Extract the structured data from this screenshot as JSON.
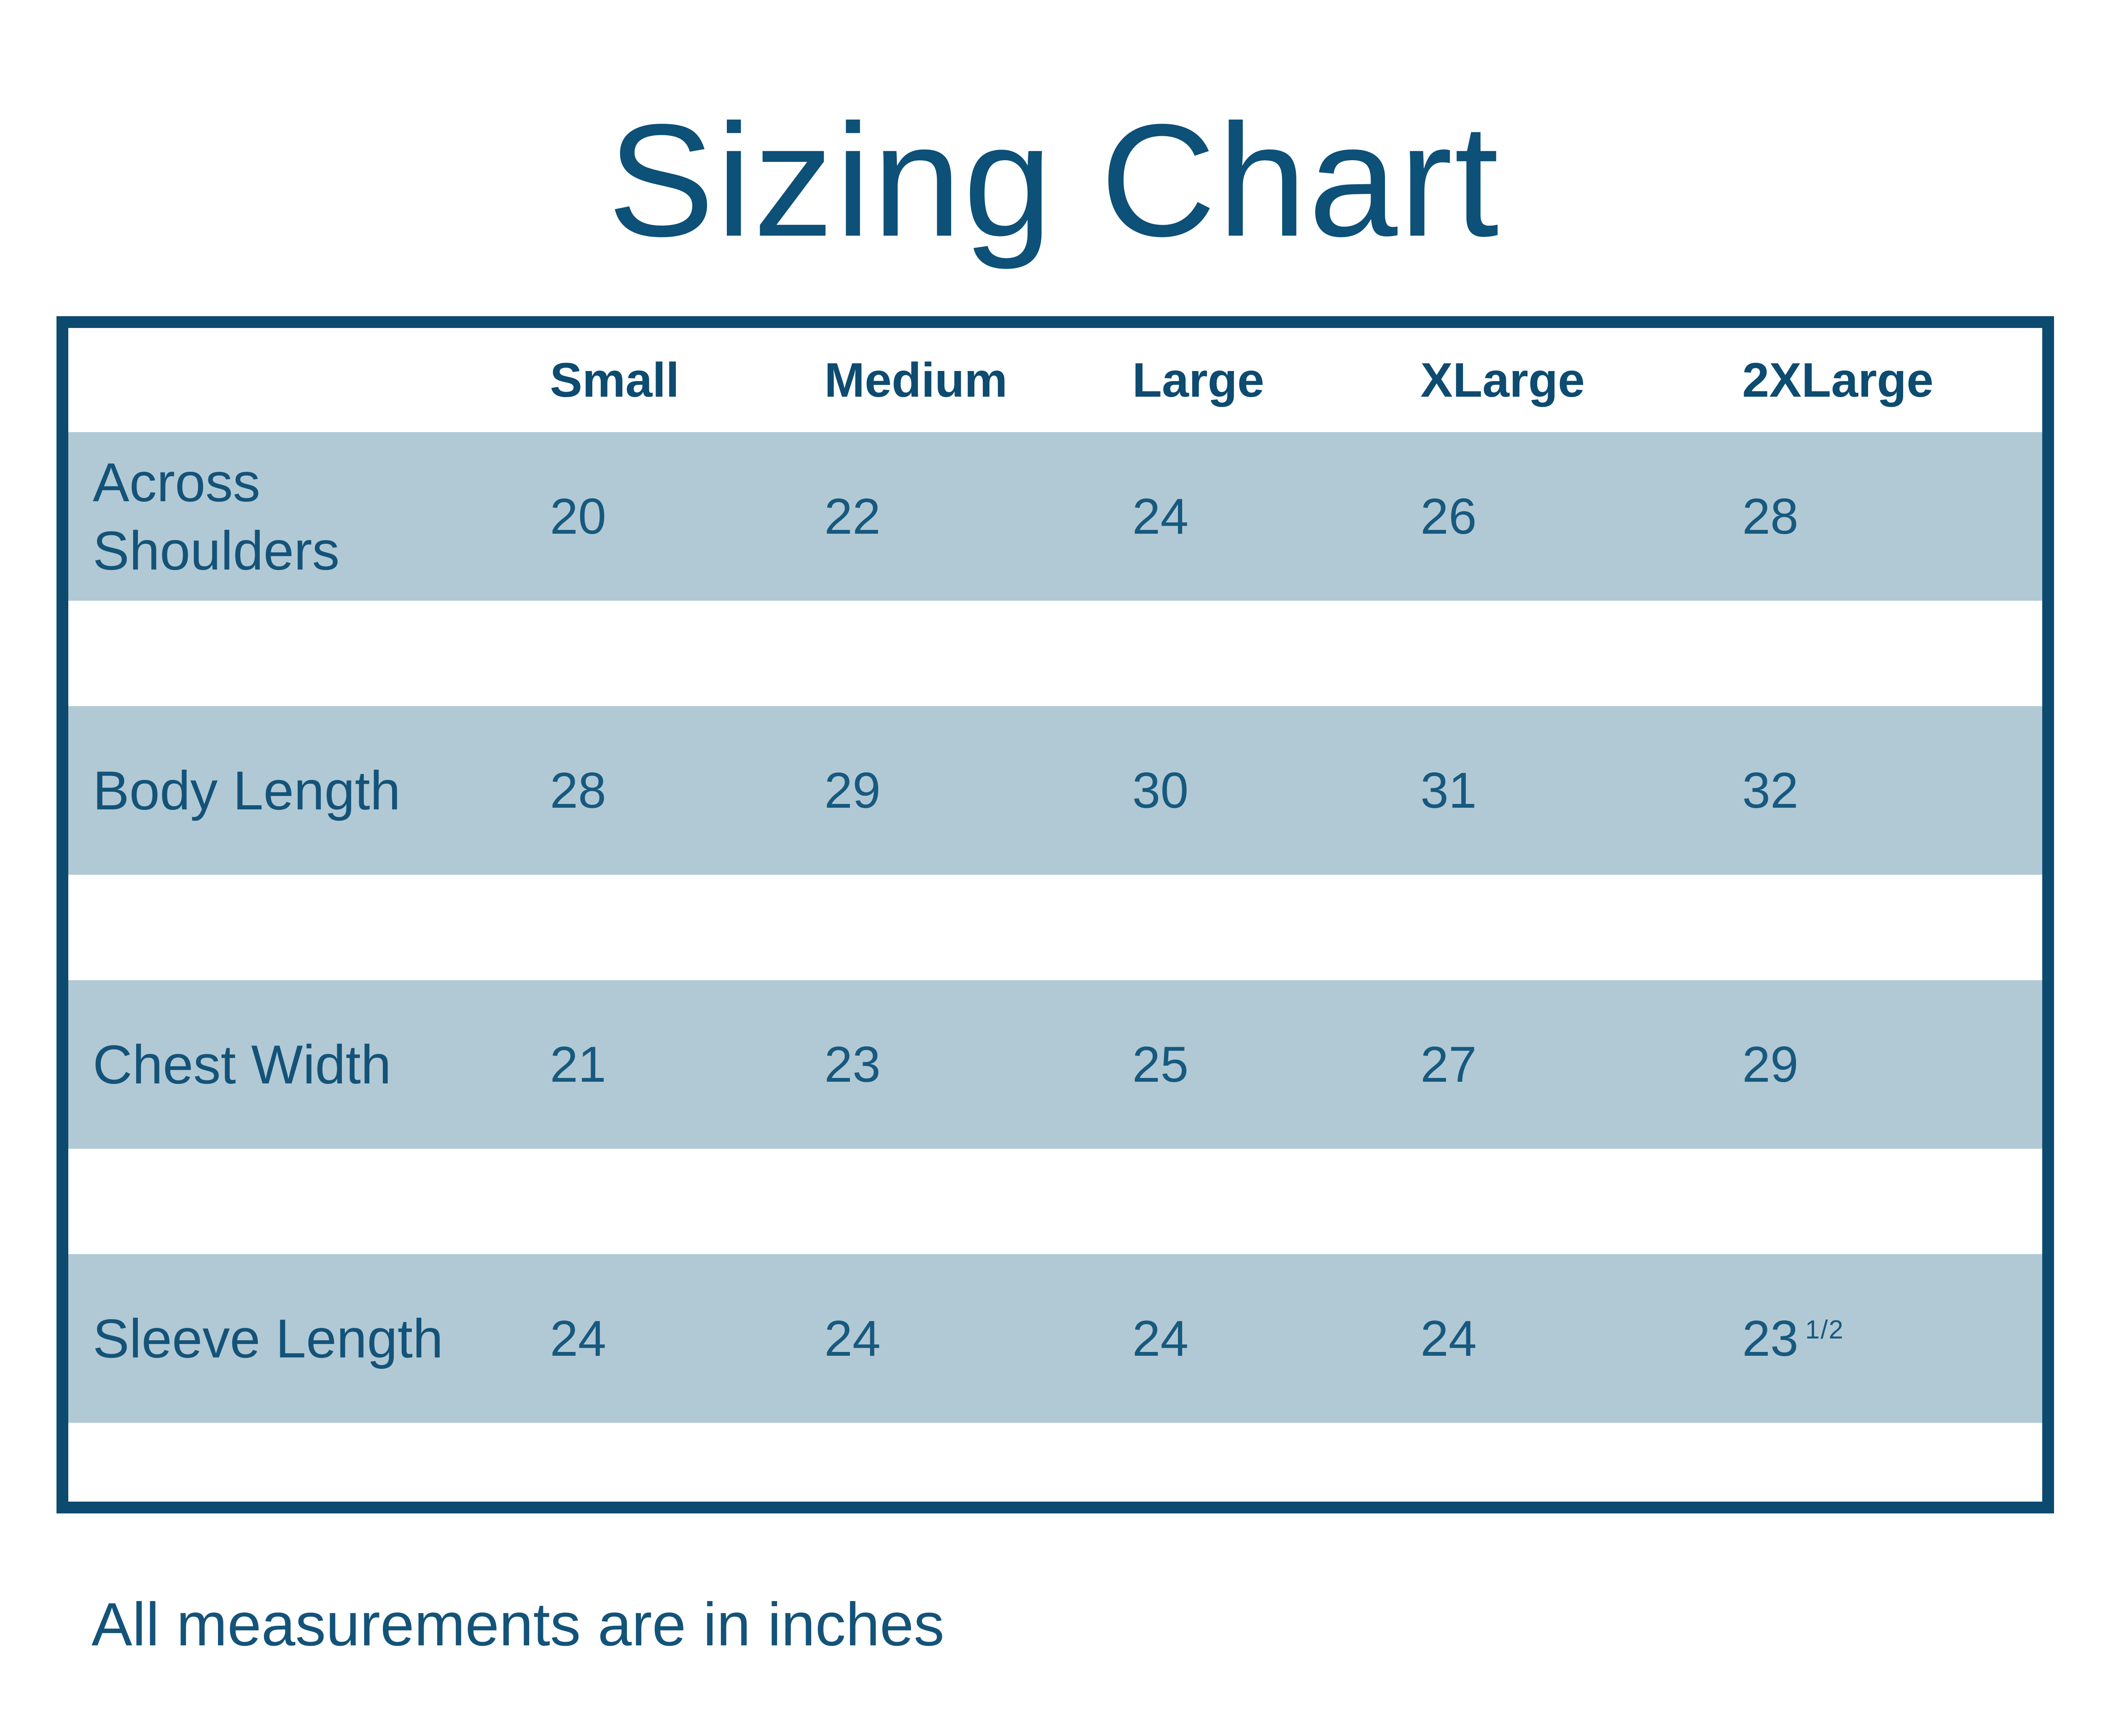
{
  "page": {
    "title": "Sizing Chart",
    "footer_note": "All measurements are in inches"
  },
  "table": {
    "columns": [
      "Small",
      "Medium",
      "Large",
      "XLarge",
      "2XLarge"
    ],
    "rows": [
      {
        "label": "Across\nShoulders",
        "values": [
          "20",
          "22",
          "24",
          "26",
          "28"
        ]
      },
      {
        "label": "Body Length",
        "values": [
          "28",
          "29",
          "30",
          "31",
          "32"
        ]
      },
      {
        "label": "Chest Width",
        "values": [
          "21",
          "23",
          "25",
          "27",
          "29"
        ]
      },
      {
        "label": "Sleeve Length",
        "values": [
          "24",
          "24",
          "24",
          "24",
          "23"
        ],
        "last_value_fraction": "1/2"
      }
    ]
  },
  "colors": {
    "background": "#ffffff",
    "border": "#0c4a70",
    "band": "#b1c9d4",
    "title_text": "#0d5078",
    "header_text": "#0d4b70",
    "label_text": "#145379",
    "number_text": "#17597f"
  }
}
